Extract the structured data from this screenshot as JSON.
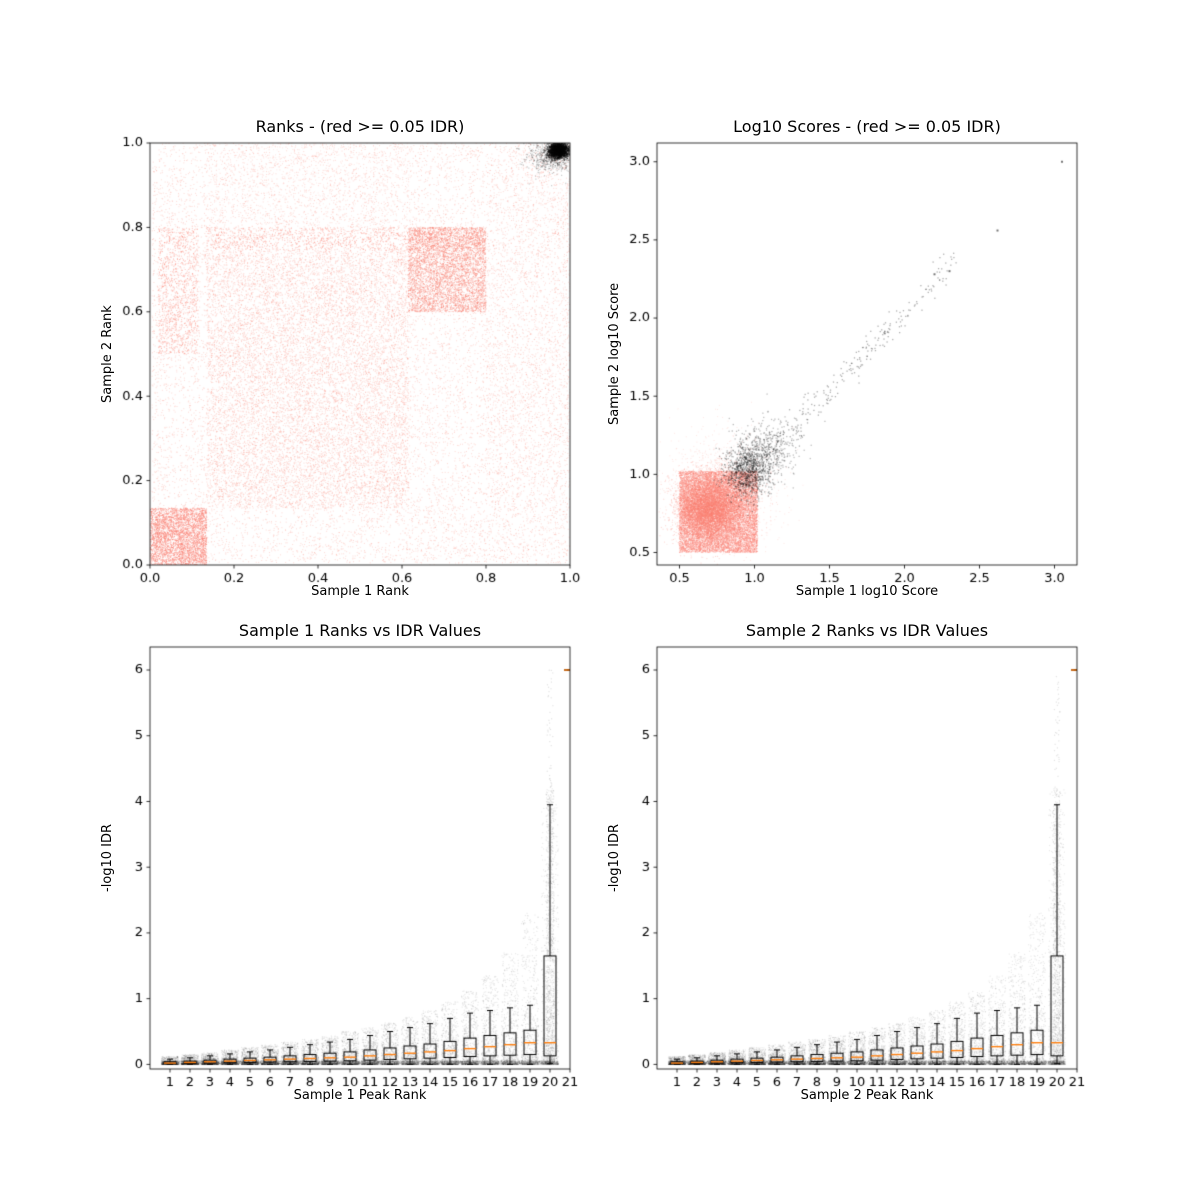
{
  "figure": {
    "background": "#ffffff"
  },
  "palette": {
    "irreproducible_points": "#FA8072",
    "reproducible_points": "#000000",
    "median_line": "#FF7F0E",
    "axis": "#000000"
  },
  "chart_data": [
    {
      "type": "scatter",
      "title": "Ranks - (red >= 0.05 IDR)",
      "xlabel": "Sample 1 Rank",
      "ylabel": "Sample 2 Rank",
      "xlim": [
        0.0,
        1.0
      ],
      "ylim": [
        0.0,
        1.0
      ],
      "xticks": [
        0.0,
        0.2,
        0.4,
        0.6,
        0.8,
        1.0
      ],
      "xtick_labels": [
        "0.0",
        "0.2",
        "0.4",
        "0.6",
        "0.8",
        "1.0"
      ],
      "yticks": [
        0.0,
        0.2,
        0.4,
        0.6,
        0.8,
        1.0
      ],
      "ytick_labels": [
        "0.0",
        "0.2",
        "0.4",
        "0.6",
        "0.8",
        "1.0"
      ],
      "grid": false,
      "description": "Salmon points (IDR >= 0.05) scattered over rank space with dense blocks at low ranks and mid ranks; black points (reproducible) concentrated in top-right corner near (1,1).",
      "clusters": [
        {
          "kind": "uniform",
          "x": [
            0.005,
            1.0
          ],
          "y": [
            0.005,
            1.0
          ],
          "count": 14000,
          "color": "#FA8072",
          "alpha": 0.3,
          "size": 1
        },
        {
          "kind": "uniform",
          "x": [
            0.0,
            0.135
          ],
          "y": [
            0.0,
            0.135
          ],
          "count": 3000,
          "color": "#FA8072",
          "alpha": 0.55,
          "size": 1
        },
        {
          "kind": "uniform",
          "x": [
            0.615,
            0.8
          ],
          "y": [
            0.6,
            0.8
          ],
          "count": 4000,
          "color": "#FA8072",
          "alpha": 0.5,
          "size": 1
        },
        {
          "kind": "uniform",
          "x": [
            0.02,
            0.115
          ],
          "y": [
            0.5,
            0.8
          ],
          "count": 1100,
          "color": "#FA8072",
          "alpha": 0.45,
          "size": 1
        },
        {
          "kind": "uniform",
          "x": [
            0.135,
            0.615
          ],
          "y": [
            0.135,
            0.745
          ],
          "count": 9000,
          "color": "#FA8072",
          "alpha": 0.3,
          "size": 1
        },
        {
          "kind": "uniform",
          "x": [
            0.135,
            0.8
          ],
          "y": [
            0.745,
            0.8
          ],
          "count": 1200,
          "color": "#FA8072",
          "alpha": 0.45,
          "size": 1
        },
        {
          "kind": "uniform",
          "x": [
            0.8,
            1.0
          ],
          "y": [
            0.135,
            0.97
          ],
          "count": 1500,
          "color": "#FA8072",
          "alpha": 0.25,
          "size": 1
        },
        {
          "kind": "uniform",
          "x": [
            0.135,
            0.62
          ],
          "y": [
            0.8,
            1.0
          ],
          "count": 900,
          "color": "#FA8072",
          "alpha": 0.2,
          "size": 1
        },
        {
          "kind": "uniform",
          "x": [
            0.615,
            1.0
          ],
          "y": [
            0.0,
            0.135
          ],
          "count": 300,
          "color": "#FA8072",
          "alpha": 0.2,
          "size": 1
        },
        {
          "kind": "gauss",
          "cx": 0.973,
          "cy": 0.982,
          "sx": 0.012,
          "sy": 0.009,
          "count": 1800,
          "color": "#000000",
          "alpha": 0.4,
          "size": 1.4
        },
        {
          "kind": "gauss",
          "cx": 0.955,
          "cy": 0.968,
          "sx": 0.028,
          "sy": 0.02,
          "count": 600,
          "color": "#000000",
          "alpha": 0.22,
          "size": 1.2
        }
      ]
    },
    {
      "type": "scatter",
      "title": "Log10 Scores - (red >= 0.05 IDR)",
      "xlabel": "Sample 1 log10 Score",
      "ylabel": "Sample 2 log10 Score",
      "xlim": [
        0.35,
        3.15
      ],
      "ylim": [
        0.42,
        3.12
      ],
      "xticks": [
        0.5,
        1.0,
        1.5,
        2.0,
        2.5,
        3.0
      ],
      "xtick_labels": [
        "0.5",
        "1.0",
        "1.5",
        "2.0",
        "2.5",
        "3.0"
      ],
      "yticks": [
        0.5,
        1.0,
        1.5,
        2.0,
        2.5,
        3.0
      ],
      "ytick_labels": [
        "0.5",
        "1.0",
        "1.5",
        "2.0",
        "2.5",
        "3.0"
      ],
      "grid": false,
      "description": "Dense salmon blob of low scores (0.5-1.0 on both axes); black reproducible points form a diagonal streak from about (0.9,1.0) to (2.3,2.3) with outliers near (2.6,2.55) and (3.05,3.0).",
      "clusters": [
        {
          "kind": "uniform",
          "x": [
            0.5,
            1.02
          ],
          "y": [
            0.5,
            1.02
          ],
          "count": 11000,
          "color": "#FA8072",
          "alpha": 0.4,
          "size": 1
        },
        {
          "kind": "gauss",
          "cx": 0.7,
          "cy": 0.78,
          "sx": 0.1,
          "sy": 0.1,
          "count": 7000,
          "color": "#FA8072",
          "alpha": 0.35,
          "size": 1
        },
        {
          "kind": "gauss",
          "cx": 0.78,
          "cy": 0.88,
          "sx": 0.17,
          "sy": 0.17,
          "count": 1600,
          "color": "#FA8072",
          "alpha": 0.2,
          "size": 1
        },
        {
          "kind": "gauss",
          "cx": 0.95,
          "cy": 1.02,
          "sx": 0.07,
          "sy": 0.08,
          "count": 900,
          "color": "#000000",
          "alpha": 0.3,
          "size": 1.3
        },
        {
          "kind": "gauss",
          "cx": 1.08,
          "cy": 1.14,
          "sx": 0.11,
          "sy": 0.11,
          "count": 450,
          "color": "#000000",
          "alpha": 0.26,
          "size": 1.3
        },
        {
          "kind": "line",
          "x1": 1.05,
          "x2": 2.35,
          "slope": 1.0,
          "intercept": 0.04,
          "noise": 0.055,
          "pow": 1.7,
          "count": 300,
          "color": "#000000",
          "alpha": 0.32,
          "size": 1.3
        }
      ],
      "points": [
        [
          2.62,
          2.56
        ],
        [
          3.05,
          3.0
        ],
        [
          2.2,
          2.28
        ],
        [
          2.3,
          2.3
        ]
      ]
    },
    {
      "type": "box-scatter",
      "title": "Sample 1 Ranks vs IDR Values",
      "xlabel": "Sample 1 Peak Rank",
      "ylabel": "-log10 IDR",
      "xlim": [
        0,
        21
      ],
      "ylim": [
        -0.07,
        6.35
      ],
      "xticks": [
        1,
        2,
        3,
        4,
        5,
        6,
        7,
        8,
        9,
        10,
        11,
        12,
        13,
        14,
        15,
        16,
        17,
        18,
        19,
        20,
        21
      ],
      "xtick_labels": [
        "1",
        "2",
        "3",
        "4",
        "5",
        "6",
        "7",
        "8",
        "9",
        "10",
        "11",
        "12",
        "13",
        "14",
        "15",
        "16",
        "17",
        "18",
        "19",
        "20",
        "21"
      ],
      "yticks": [
        0,
        1,
        2,
        3,
        4,
        5,
        6
      ],
      "ytick_labels": [
        "0",
        "1",
        "2",
        "3",
        "4",
        "5",
        "6"
      ],
      "grid": false,
      "median_color": "#FF7F0E",
      "box_width": 0.6,
      "description": "-log10 IDR per peak-rank bin; values hug 0 for low ranks and rise steeply at rank 20 (box to ~1.65, whisker to ~3.95, tail of points to 6); rank 21 collapses to an orange dash at 6.",
      "box_stats": [
        {
          "rank": 1,
          "lo": 0.0,
          "q1": 0.01,
          "med": 0.02,
          "q3": 0.04,
          "hi": 0.08
        },
        {
          "rank": 2,
          "lo": 0.0,
          "q1": 0.015,
          "med": 0.03,
          "q3": 0.05,
          "hi": 0.1
        },
        {
          "rank": 3,
          "lo": 0.0,
          "q1": 0.02,
          "med": 0.04,
          "q3": 0.065,
          "hi": 0.13
        },
        {
          "rank": 4,
          "lo": 0.0,
          "q1": 0.025,
          "med": 0.05,
          "q3": 0.08,
          "hi": 0.16
        },
        {
          "rank": 5,
          "lo": 0.0,
          "q1": 0.03,
          "med": 0.06,
          "q3": 0.095,
          "hi": 0.19
        },
        {
          "rank": 6,
          "lo": 0.0,
          "q1": 0.035,
          "med": 0.07,
          "q3": 0.11,
          "hi": 0.22
        },
        {
          "rank": 7,
          "lo": 0.0,
          "q1": 0.04,
          "med": 0.08,
          "q3": 0.13,
          "hi": 0.26
        },
        {
          "rank": 8,
          "lo": 0.0,
          "q1": 0.045,
          "med": 0.09,
          "q3": 0.15,
          "hi": 0.3
        },
        {
          "rank": 9,
          "lo": 0.0,
          "q1": 0.05,
          "med": 0.1,
          "q3": 0.17,
          "hi": 0.34
        },
        {
          "rank": 10,
          "lo": 0.0,
          "q1": 0.055,
          "med": 0.11,
          "q3": 0.19,
          "hi": 0.38
        },
        {
          "rank": 11,
          "lo": 0.0,
          "q1": 0.065,
          "med": 0.13,
          "q3": 0.22,
          "hi": 0.44
        },
        {
          "rank": 12,
          "lo": 0.0,
          "q1": 0.075,
          "med": 0.15,
          "q3": 0.25,
          "hi": 0.5
        },
        {
          "rank": 13,
          "lo": 0.0,
          "q1": 0.085,
          "med": 0.17,
          "q3": 0.28,
          "hi": 0.56
        },
        {
          "rank": 14,
          "lo": 0.0,
          "q1": 0.095,
          "med": 0.19,
          "q3": 0.31,
          "hi": 0.62
        },
        {
          "rank": 15,
          "lo": 0.0,
          "q1": 0.105,
          "med": 0.21,
          "q3": 0.35,
          "hi": 0.7
        },
        {
          "rank": 16,
          "lo": 0.0,
          "q1": 0.12,
          "med": 0.24,
          "q3": 0.4,
          "hi": 0.78
        },
        {
          "rank": 17,
          "lo": 0.0,
          "q1": 0.13,
          "med": 0.27,
          "q3": 0.44,
          "hi": 0.82
        },
        {
          "rank": 18,
          "lo": 0.0,
          "q1": 0.14,
          "med": 0.3,
          "q3": 0.48,
          "hi": 0.86
        },
        {
          "rank": 19,
          "lo": 0.0,
          "q1": 0.15,
          "med": 0.33,
          "q3": 0.52,
          "hi": 0.9
        },
        {
          "rank": 20,
          "lo": 0.01,
          "q1": 0.13,
          "med": 0.33,
          "q3": 1.65,
          "hi": 3.95
        },
        {
          "rank": 21,
          "lo": 6.0,
          "q1": 6.0,
          "med": 6.0,
          "q3": 6.0,
          "hi": 6.0
        }
      ],
      "scatter": {
        "per_rank_count": 700,
        "per_rank_max": [
          0.12,
          0.15,
          0.18,
          0.22,
          0.26,
          0.3,
          0.34,
          0.38,
          0.44,
          0.5,
          0.56,
          0.63,
          0.72,
          0.82,
          0.95,
          1.12,
          1.35,
          1.7,
          2.3,
          4.2,
          0.0
        ],
        "pow": 3.0,
        "baseline": {
          "count": 5000,
          "ymax": 0.055
        },
        "spike": {
          "x": 20,
          "count": 900,
          "max": 4.2,
          "pow": 1.6
        },
        "tail": {
          "x": 20,
          "ymin": 1.8,
          "ymax": 6.0,
          "count": 80
        },
        "color": "#000000",
        "alpha": 0.09
      }
    },
    {
      "type": "box-scatter",
      "title": "Sample 2 Ranks vs IDR Values",
      "xlabel": "Sample 2 Peak Rank",
      "ylabel": "-log10 IDR",
      "xlim": [
        0,
        21
      ],
      "ylim": [
        -0.07,
        6.35
      ],
      "xticks": [
        1,
        2,
        3,
        4,
        5,
        6,
        7,
        8,
        9,
        10,
        11,
        12,
        13,
        14,
        15,
        16,
        17,
        18,
        19,
        20,
        21
      ],
      "xtick_labels": [
        "1",
        "2",
        "3",
        "4",
        "5",
        "6",
        "7",
        "8",
        "9",
        "10",
        "11",
        "12",
        "13",
        "14",
        "15",
        "16",
        "17",
        "18",
        "19",
        "20",
        "21"
      ],
      "yticks": [
        0,
        1,
        2,
        3,
        4,
        5,
        6
      ],
      "ytick_labels": [
        "0",
        "1",
        "2",
        "3",
        "4",
        "5",
        "6"
      ],
      "grid": false,
      "median_color": "#FF7F0E",
      "box_width": 0.6,
      "description": "Same distribution as Sample 1: -log10 IDR near 0 for low ranks, steep rise at rank 20 with whisker to ~3.95 and sparse tail to 6; rank 21 is an orange dash at 6.",
      "box_stats": [
        {
          "rank": 1,
          "lo": 0.0,
          "q1": 0.01,
          "med": 0.02,
          "q3": 0.04,
          "hi": 0.08
        },
        {
          "rank": 2,
          "lo": 0.0,
          "q1": 0.015,
          "med": 0.03,
          "q3": 0.05,
          "hi": 0.1
        },
        {
          "rank": 3,
          "lo": 0.0,
          "q1": 0.02,
          "med": 0.04,
          "q3": 0.065,
          "hi": 0.13
        },
        {
          "rank": 4,
          "lo": 0.0,
          "q1": 0.025,
          "med": 0.05,
          "q3": 0.08,
          "hi": 0.16
        },
        {
          "rank": 5,
          "lo": 0.0,
          "q1": 0.03,
          "med": 0.06,
          "q3": 0.095,
          "hi": 0.19
        },
        {
          "rank": 6,
          "lo": 0.0,
          "q1": 0.035,
          "med": 0.07,
          "q3": 0.11,
          "hi": 0.22
        },
        {
          "rank": 7,
          "lo": 0.0,
          "q1": 0.04,
          "med": 0.08,
          "q3": 0.13,
          "hi": 0.26
        },
        {
          "rank": 8,
          "lo": 0.0,
          "q1": 0.045,
          "med": 0.09,
          "q3": 0.15,
          "hi": 0.3
        },
        {
          "rank": 9,
          "lo": 0.0,
          "q1": 0.05,
          "med": 0.1,
          "q3": 0.17,
          "hi": 0.34
        },
        {
          "rank": 10,
          "lo": 0.0,
          "q1": 0.055,
          "med": 0.11,
          "q3": 0.19,
          "hi": 0.38
        },
        {
          "rank": 11,
          "lo": 0.0,
          "q1": 0.065,
          "med": 0.13,
          "q3": 0.22,
          "hi": 0.44
        },
        {
          "rank": 12,
          "lo": 0.0,
          "q1": 0.075,
          "med": 0.15,
          "q3": 0.25,
          "hi": 0.5
        },
        {
          "rank": 13,
          "lo": 0.0,
          "q1": 0.085,
          "med": 0.17,
          "q3": 0.28,
          "hi": 0.56
        },
        {
          "rank": 14,
          "lo": 0.0,
          "q1": 0.095,
          "med": 0.19,
          "q3": 0.31,
          "hi": 0.62
        },
        {
          "rank": 15,
          "lo": 0.0,
          "q1": 0.105,
          "med": 0.21,
          "q3": 0.35,
          "hi": 0.7
        },
        {
          "rank": 16,
          "lo": 0.0,
          "q1": 0.12,
          "med": 0.24,
          "q3": 0.4,
          "hi": 0.78
        },
        {
          "rank": 17,
          "lo": 0.0,
          "q1": 0.13,
          "med": 0.27,
          "q3": 0.44,
          "hi": 0.82
        },
        {
          "rank": 18,
          "lo": 0.0,
          "q1": 0.14,
          "med": 0.3,
          "q3": 0.48,
          "hi": 0.86
        },
        {
          "rank": 19,
          "lo": 0.0,
          "q1": 0.15,
          "med": 0.33,
          "q3": 0.52,
          "hi": 0.9
        },
        {
          "rank": 20,
          "lo": 0.01,
          "q1": 0.13,
          "med": 0.33,
          "q3": 1.65,
          "hi": 3.95
        },
        {
          "rank": 21,
          "lo": 6.0,
          "q1": 6.0,
          "med": 6.0,
          "q3": 6.0,
          "hi": 6.0
        }
      ],
      "scatter": {
        "per_rank_count": 700,
        "per_rank_max": [
          0.12,
          0.15,
          0.18,
          0.22,
          0.26,
          0.3,
          0.34,
          0.38,
          0.44,
          0.5,
          0.56,
          0.63,
          0.72,
          0.82,
          0.95,
          1.12,
          1.35,
          1.7,
          2.3,
          4.2,
          0.0
        ],
        "pow": 3.0,
        "baseline": {
          "count": 5000,
          "ymax": 0.055
        },
        "spike": {
          "x": 20,
          "count": 900,
          "max": 4.2,
          "pow": 1.6
        },
        "tail": {
          "x": 20,
          "ymin": 1.8,
          "ymax": 6.0,
          "count": 80
        },
        "color": "#000000",
        "alpha": 0.09
      }
    }
  ]
}
